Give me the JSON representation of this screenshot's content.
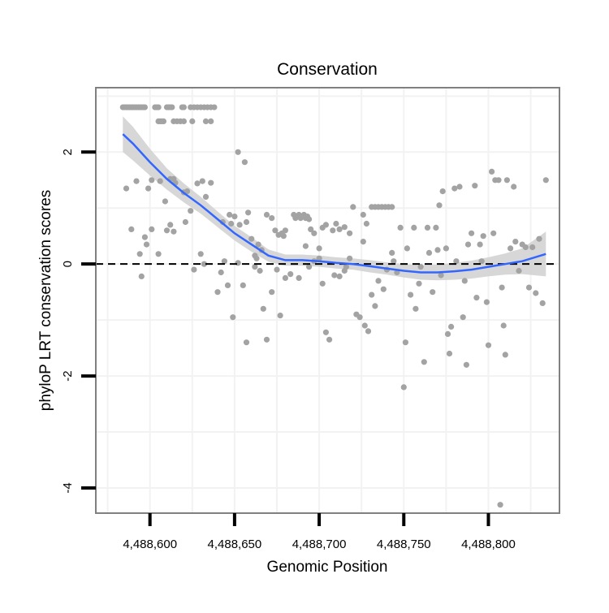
{
  "colors": {
    "point": "#a3a3a3",
    "smooth_line": "#3366ff",
    "confidence_band": "#d3d3d3",
    "grid": "#f2f2f2",
    "panel_border": "#808080",
    "reference_line": "#000000"
  },
  "chart_data": {
    "type": "scatter",
    "title": "Conservation",
    "xlabel": "Genomic Position",
    "ylabel": "phyloP LRT conservation scores",
    "xlim": [
      4488568,
      4488842
    ],
    "ylim": [
      -4.45,
      3.15
    ],
    "x_ticks": [
      4488600,
      4488650,
      4488700,
      4488750,
      4488800
    ],
    "x_tick_labels": [
      "4,488,600",
      "4,488,650",
      "4,488,700",
      "4,488,750",
      "4,488,800"
    ],
    "y_ticks": [
      -4,
      -2,
      0,
      2
    ],
    "y_tick_labels": [
      "-4",
      "-2",
      "0",
      "2"
    ],
    "grid": true,
    "reference_line": {
      "y": 0,
      "style": "dashed"
    },
    "points": [
      [
        4488584,
        2.8
      ],
      [
        4488585,
        2.8
      ],
      [
        4488586,
        2.8
      ],
      [
        4488587,
        2.8
      ],
      [
        4488588,
        2.8
      ],
      [
        4488589,
        2.8
      ],
      [
        4488590,
        2.8
      ],
      [
        4488591,
        2.8
      ],
      [
        4488592,
        2.8
      ],
      [
        4488593,
        2.8
      ],
      [
        4488594,
        2.8
      ],
      [
        4488595,
        2.8
      ],
      [
        4488596,
        2.8
      ],
      [
        4488597,
        2.8
      ],
      [
        4488603,
        2.8
      ],
      [
        4488604,
        2.8
      ],
      [
        4488605,
        2.8
      ],
      [
        4488610,
        2.8
      ],
      [
        4488611,
        2.8
      ],
      [
        4488612,
        2.8
      ],
      [
        4488613,
        2.8
      ],
      [
        4488619,
        2.8
      ],
      [
        4488620,
        2.8
      ],
      [
        4488624,
        2.8
      ],
      [
        4488626,
        2.8
      ],
      [
        4488628,
        2.8
      ],
      [
        4488630,
        2.8
      ],
      [
        4488632,
        2.8
      ],
      [
        4488634,
        2.8
      ],
      [
        4488636,
        2.8
      ],
      [
        4488638,
        2.8
      ],
      [
        4488605,
        2.55
      ],
      [
        4488606,
        2.55
      ],
      [
        4488607,
        2.55
      ],
      [
        4488608,
        2.55
      ],
      [
        4488614,
        2.55
      ],
      [
        4488616,
        2.55
      ],
      [
        4488618,
        2.55
      ],
      [
        4488620,
        2.55
      ],
      [
        4488625,
        2.55
      ],
      [
        4488633,
        2.55
      ],
      [
        4488636,
        2.55
      ],
      [
        4488586,
        1.35
      ],
      [
        4488592,
        1.48
      ],
      [
        4488599,
        1.35
      ],
      [
        4488601,
        1.5
      ],
      [
        4488606,
        1.48
      ],
      [
        4488609,
        1.12
      ],
      [
        4488612,
        1.52
      ],
      [
        4488615,
        1.45
      ],
      [
        4488620,
        1.28
      ],
      [
        4488622,
        1.3
      ],
      [
        4488628,
        1.44
      ],
      [
        4488631,
        1.48
      ],
      [
        4488633,
        1.2
      ],
      [
        4488589,
        0.62
      ],
      [
        4488594,
        0.18
      ],
      [
        4488595,
        -0.22
      ],
      [
        4488597,
        0.48
      ],
      [
        4488598,
        0.35
      ],
      [
        4488601,
        0.62
      ],
      [
        4488605,
        0.18
      ],
      [
        4488610,
        0.6
      ],
      [
        4488612,
        0.7
      ],
      [
        4488614,
        0.58
      ],
      [
        4488621,
        0.75
      ],
      [
        4488624,
        0.95
      ],
      [
        4488626,
        -0.1
      ],
      [
        4488630,
        0.18
      ],
      [
        4488652,
        2.0
      ],
      [
        4488656,
        1.82
      ],
      [
        4488650,
        0.85
      ],
      [
        4488643,
        0.75
      ],
      [
        4488647,
        0.88
      ],
      [
        4488648,
        0.72
      ],
      [
        4488653,
        0.7
      ],
      [
        4488657,
        0.75
      ],
      [
        4488660,
        0.45
      ],
      [
        4488662,
        0.15
      ],
      [
        4488663,
        0.1
      ],
      [
        4488666,
        0.25
      ],
      [
        4488669,
        0.88
      ],
      [
        4488672,
        0.82
      ],
      [
        4488674,
        0.6
      ],
      [
        4488676,
        0.52
      ],
      [
        4488678,
        0.55
      ],
      [
        4488680,
        0.6
      ],
      [
        4488685,
        0.88
      ],
      [
        4488686,
        0.82
      ],
      [
        4488687,
        0.85
      ],
      [
        4488688,
        0.88
      ],
      [
        4488689,
        0.82
      ],
      [
        4488690,
        0.85
      ],
      [
        4488691,
        0.88
      ],
      [
        4488692,
        0.82
      ],
      [
        4488693,
        0.85
      ],
      [
        4488694,
        0.8
      ],
      [
        4488695,
        0.62
      ],
      [
        4488697,
        0.55
      ],
      [
        4488702,
        0.65
      ],
      [
        4488704,
        0.7
      ],
      [
        4488708,
        0.6
      ],
      [
        4488710,
        0.72
      ],
      [
        4488712,
        0.62
      ],
      [
        4488715,
        0.66
      ],
      [
        4488718,
        0.55
      ],
      [
        4488720,
        1.02
      ],
      [
        4488726,
        0.88
      ],
      [
        4488728,
        0.72
      ],
      [
        4488731,
        1.02
      ],
      [
        4488733,
        1.02
      ],
      [
        4488735,
        1.02
      ],
      [
        4488737,
        1.02
      ],
      [
        4488739,
        1.02
      ],
      [
        4488741,
        1.02
      ],
      [
        4488743,
        1.02
      ],
      [
        4488640,
        -0.5
      ],
      [
        4488642,
        -0.15
      ],
      [
        4488644,
        0.05
      ],
      [
        4488646,
        -0.38
      ],
      [
        4488649,
        -0.95
      ],
      [
        4488652,
        0.02
      ],
      [
        4488655,
        -0.38
      ],
      [
        4488657,
        -1.4
      ],
      [
        4488662,
        -0.05
      ],
      [
        4488665,
        -0.12
      ],
      [
        4488667,
        -0.8
      ],
      [
        4488669,
        -1.35
      ],
      [
        4488672,
        -0.5
      ],
      [
        4488675,
        -0.1
      ],
      [
        4488677,
        -0.92
      ],
      [
        4488680,
        -0.25
      ],
      [
        4488683,
        -0.18
      ],
      [
        4488688,
        -0.25
      ],
      [
        4488692,
        0.32
      ],
      [
        4488694,
        -0.05
      ],
      [
        4488697,
        0.05
      ],
      [
        4488700,
        0.28
      ],
      [
        4488702,
        -0.35
      ],
      [
        4488704,
        -1.22
      ],
      [
        4488706,
        -1.35
      ],
      [
        4488709,
        -0.2
      ],
      [
        4488712,
        -0.22
      ],
      [
        4488715,
        -0.12
      ],
      [
        4488718,
        0.1
      ],
      [
        4488722,
        -0.9
      ],
      [
        4488724,
        -0.95
      ],
      [
        4488727,
        -1.1
      ],
      [
        4488729,
        -1.2
      ],
      [
        4488731,
        -0.55
      ],
      [
        4488733,
        -0.75
      ],
      [
        4488735,
        -0.3
      ],
      [
        4488738,
        -0.45
      ],
      [
        4488740,
        -0.1
      ],
      [
        4488743,
        0.2
      ],
      [
        4488746,
        -0.15
      ],
      [
        4488748,
        0.65
      ],
      [
        4488750,
        -2.2
      ],
      [
        4488751,
        -1.4
      ],
      [
        4488752,
        0.28
      ],
      [
        4488754,
        -0.55
      ],
      [
        4488756,
        0.65
      ],
      [
        4488757,
        -0.8
      ],
      [
        4488759,
        -0.35
      ],
      [
        4488762,
        -1.75
      ],
      [
        4488764,
        0.65
      ],
      [
        4488765,
        0.2
      ],
      [
        4488767,
        -0.5
      ],
      [
        4488769,
        0.65
      ],
      [
        4488770,
        0.25
      ],
      [
        4488771,
        1.05
      ],
      [
        4488773,
        1.3
      ],
      [
        4488775,
        0.28
      ],
      [
        4488776,
        -1.25
      ],
      [
        4488777,
        -1.6
      ],
      [
        4488778,
        -1.12
      ],
      [
        4488780,
        1.35
      ],
      [
        4488781,
        0.05
      ],
      [
        4488783,
        1.38
      ],
      [
        4488785,
        -0.95
      ],
      [
        4488787,
        -1.8
      ],
      [
        4488788,
        0.35
      ],
      [
        4488790,
        0.55
      ],
      [
        4488792,
        1.4
      ],
      [
        4488793,
        -0.6
      ],
      [
        4488795,
        0.35
      ],
      [
        4488797,
        0.5
      ],
      [
        4488799,
        -0.68
      ],
      [
        4488800,
        -1.45
      ],
      [
        4488802,
        1.65
      ],
      [
        4488803,
        0.55
      ],
      [
        4488804,
        1.5
      ],
      [
        4488806,
        1.5
      ],
      [
        4488807,
        -4.3
      ],
      [
        4488808,
        -0.42
      ],
      [
        4488809,
        -1.1
      ],
      [
        4488810,
        -1.62
      ],
      [
        4488811,
        1.5
      ],
      [
        4488813,
        0.28
      ],
      [
        4488815,
        1.38
      ],
      [
        4488816,
        0.4
      ],
      [
        4488818,
        -0.12
      ],
      [
        4488820,
        0.35
      ],
      [
        4488822,
        0.3
      ],
      [
        4488824,
        -0.42
      ],
      [
        4488826,
        0.3
      ],
      [
        4488828,
        -0.52
      ],
      [
        4488830,
        0.45
      ],
      [
        4488832,
        -0.7
      ],
      [
        4488834,
        1.5
      ],
      [
        4488614,
        1.52
      ],
      [
        4488632,
        0.0
      ],
      [
        4488636,
        1.45
      ],
      [
        4488658,
        0.92
      ],
      [
        4488664,
        0.35
      ],
      [
        4488679,
        0.5
      ],
      [
        4488700,
        0.1
      ],
      [
        4488716,
        -0.05
      ],
      [
        4488726,
        0.4
      ],
      [
        4488744,
        0.05
      ],
      [
        4488760,
        -0.05
      ],
      [
        4488772,
        -0.2
      ],
      [
        4488786,
        -0.3
      ],
      [
        4488796,
        0.05
      ]
    ],
    "smooth": {
      "x": [
        4488584,
        4488590,
        4488600,
        4488610,
        4488620,
        4488630,
        4488640,
        4488650,
        4488660,
        4488670,
        4488680,
        4488690,
        4488700,
        4488710,
        4488720,
        4488730,
        4488740,
        4488750,
        4488760,
        4488770,
        4488780,
        4488790,
        4488800,
        4488810,
        4488820,
        4488834
      ],
      "y": [
        2.32,
        2.15,
        1.82,
        1.52,
        1.27,
        1.05,
        0.8,
        0.55,
        0.35,
        0.15,
        0.07,
        0.07,
        0.05,
        0.02,
        0.0,
        -0.04,
        -0.08,
        -0.12,
        -0.15,
        -0.15,
        -0.13,
        -0.1,
        -0.05,
        0.0,
        0.05,
        0.18
      ],
      "lower": [
        2.0,
        1.85,
        1.58,
        1.33,
        1.1,
        0.9,
        0.66,
        0.42,
        0.22,
        0.04,
        -0.03,
        -0.03,
        -0.05,
        -0.08,
        -0.1,
        -0.15,
        -0.19,
        -0.24,
        -0.28,
        -0.29,
        -0.28,
        -0.26,
        -0.22,
        -0.19,
        -0.18,
        -0.22
      ],
      "upper": [
        2.64,
        2.45,
        2.06,
        1.71,
        1.44,
        1.2,
        0.94,
        0.68,
        0.48,
        0.26,
        0.17,
        0.17,
        0.15,
        0.12,
        0.1,
        0.07,
        0.03,
        0.0,
        -0.02,
        -0.01,
        0.02,
        0.06,
        0.12,
        0.19,
        0.28,
        0.58
      ]
    }
  }
}
